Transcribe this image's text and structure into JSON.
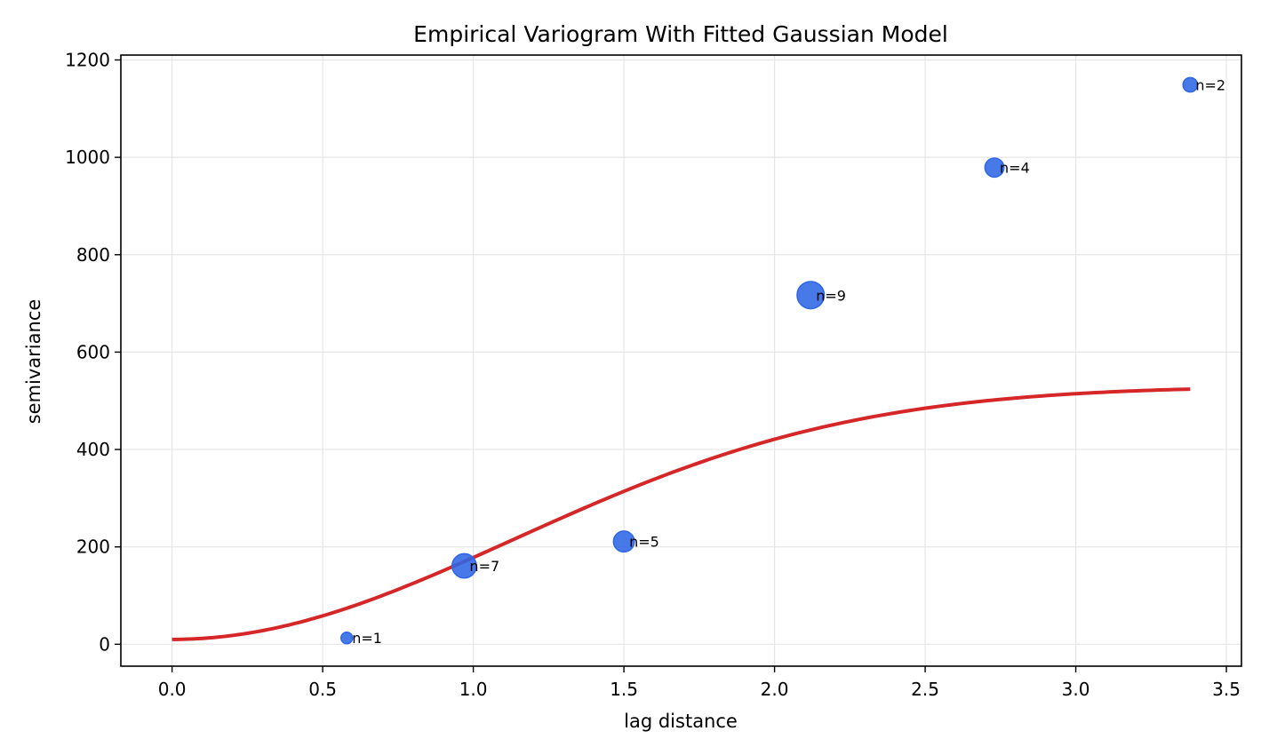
{
  "chart_data": {
    "type": "scatter",
    "title": "Empirical Variogram With Fitted Gaussian Model",
    "xlabel": "lag distance",
    "ylabel": "semivariance",
    "xlim": [
      -0.17,
      3.55
    ],
    "ylim": [
      -45,
      1210
    ],
    "xticks": [
      0.0,
      0.5,
      1.0,
      1.5,
      2.0,
      2.5,
      3.0,
      3.5
    ],
    "xtick_labels": [
      "0.0",
      "0.5",
      "1.0",
      "1.5",
      "2.0",
      "2.5",
      "3.0",
      "3.5"
    ],
    "yticks": [
      0,
      200,
      400,
      600,
      800,
      1000,
      1200
    ],
    "ytick_labels": [
      "0",
      "200",
      "400",
      "600",
      "800",
      "1000",
      "1200"
    ],
    "grid": true,
    "points": [
      {
        "x": 0.58,
        "y": 13,
        "n": 1,
        "label": "n=1"
      },
      {
        "x": 0.97,
        "y": 161,
        "n": 7,
        "label": "n=7"
      },
      {
        "x": 1.5,
        "y": 211,
        "n": 5,
        "label": "n=5"
      },
      {
        "x": 2.12,
        "y": 717,
        "n": 9,
        "label": "n=9"
      },
      {
        "x": 2.73,
        "y": 979,
        "n": 4,
        "label": "n=4"
      },
      {
        "x": 3.38,
        "y": 1149,
        "n": 2,
        "label": "n=2"
      }
    ],
    "model": {
      "type": "gaussian",
      "nugget": 10,
      "sill": 530,
      "range": 1.6,
      "x_max": 3.38
    },
    "colors": {
      "points": "#2f66e6",
      "model_line": "#d62728",
      "grid": "#e6e6e6"
    }
  }
}
